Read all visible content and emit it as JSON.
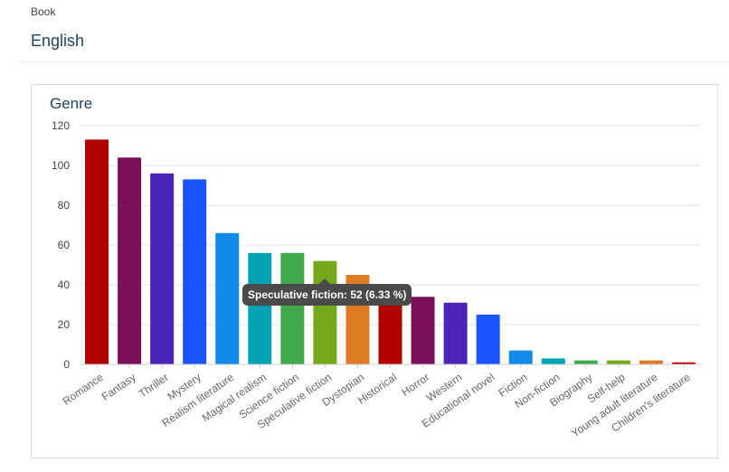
{
  "header": {
    "breadcrumb": "Book",
    "title": "English"
  },
  "tooltip": {
    "text": "Speculative fiction: 52 (6.33 %)"
  },
  "chart_data": {
    "type": "bar",
    "title": "Genre",
    "xlabel": "",
    "ylabel": "",
    "ylim": [
      0,
      120
    ],
    "yticks": [
      0,
      20,
      40,
      60,
      80,
      100,
      120
    ],
    "grid": true,
    "categories": [
      "Romance",
      "Fantasy",
      "Thriller",
      "Mystery",
      "Realism literature",
      "Magical realism",
      "Science fiction",
      "Speculative fiction",
      "Dystopian",
      "Historical",
      "Horror",
      "Western",
      "Educational novel",
      "Fiction",
      "Non-fiction",
      "Biography",
      "Self-help",
      "Young adult literature",
      "Children's literature"
    ],
    "values": [
      113,
      104,
      96,
      93,
      66,
      56,
      56,
      52,
      45,
      33,
      34,
      31,
      25,
      7,
      3,
      2,
      2,
      2,
      1
    ],
    "colors": [
      "#b00000",
      "#7a1058",
      "#4a23b8",
      "#1a53ff",
      "#118ae8",
      "#00a3b4",
      "#3eaa4a",
      "#75a81d",
      "#dd7a24",
      "#b00000",
      "#7a1058",
      "#4a23b8",
      "#1a53ff",
      "#118ae8",
      "#00a3b4",
      "#3eaa4a",
      "#75a81d",
      "#dd7a24",
      "#b00000"
    ]
  }
}
